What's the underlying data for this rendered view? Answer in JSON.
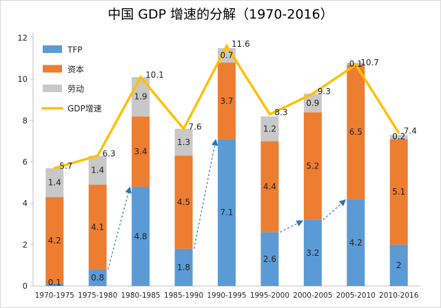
{
  "chart_data": {
    "type": "bar",
    "title": "中国 GDP 增速的分解（1970-2016）",
    "categories": [
      "1970-1975",
      "1975-1980",
      "1980-1985",
      "1985-1990",
      "1990-1995",
      "1995-2000",
      "2000-2005",
      "2005-2010",
      "2010-2016"
    ],
    "series": [
      {
        "name": "TFP",
        "kind": "stacked-bar",
        "color": "#5B9BD5",
        "values": [
          0.1,
          0.8,
          4.8,
          1.8,
          7.1,
          2.6,
          3.2,
          4.2,
          2
        ],
        "labels": [
          "0.1",
          "0.8",
          "4.8",
          "1.8",
          "7.1",
          "2.6",
          "3.2",
          "4.2",
          "2"
        ]
      },
      {
        "name": "资本",
        "kind": "stacked-bar",
        "color": "#ED7D31",
        "values": [
          4.2,
          4.1,
          3.4,
          4.5,
          3.7,
          4.4,
          5.2,
          6.5,
          5.1
        ],
        "labels": [
          "4.2",
          "4.1",
          "3.4",
          "4.5",
          "3.7",
          "4.4",
          "5.2",
          "6.5",
          "5.1"
        ]
      },
      {
        "name": "劳动",
        "kind": "stacked-bar",
        "color": "#C8C8C8",
        "values": [
          1.4,
          1.4,
          1.9,
          1.3,
          0.7,
          1.2,
          0.9,
          0.1,
          0.2
        ],
        "labels": [
          "1.4",
          "1.4",
          "1.9",
          "1.3",
          "0.7",
          "1.2",
          "0.9",
          "0.1",
          "0.2"
        ]
      },
      {
        "name": "GDP增速",
        "kind": "line",
        "color": "#FFC000",
        "values": [
          5.7,
          6.3,
          10.1,
          7.6,
          11.6,
          8.3,
          9.3,
          10.7,
          7.4
        ],
        "labels": [
          "5.7",
          "6.3",
          "10.1",
          "7.6",
          "11.6",
          "8.3",
          "9.3",
          "10.7",
          "7.4"
        ]
      }
    ],
    "ylim": [
      0,
      12
    ],
    "yticks": [
      "0",
      "2",
      "4",
      "6",
      "8",
      "10",
      "12"
    ],
    "grid": false,
    "legend_position": "top-left",
    "annotations": [
      {
        "type": "dashed-arrow",
        "color": "#2E75B6",
        "from": "1975-1980",
        "to": "1980-1985"
      },
      {
        "type": "dashed-arrow",
        "color": "#2E75B6",
        "from": "1985-1990",
        "to": "1990-1995"
      },
      {
        "type": "dashed-arrow",
        "color": "#2E75B6",
        "from": "1995-2000",
        "to": "2000-2005"
      },
      {
        "type": "dashed-arrow",
        "color": "#2E75B6",
        "from": "2000-2005",
        "to": "2005-2010"
      }
    ]
  }
}
